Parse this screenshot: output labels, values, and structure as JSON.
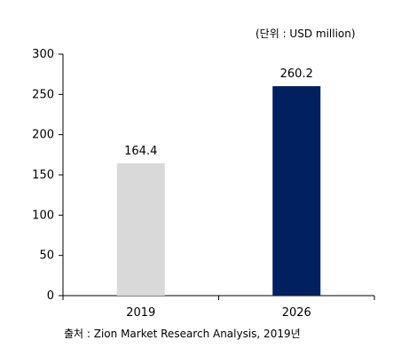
{
  "chart_data": {
    "type": "bar",
    "categories": [
      "2019",
      "2026"
    ],
    "values": [
      164.4,
      260.2
    ],
    "data_labels": [
      "164.4",
      "260.2"
    ],
    "bar_colors": [
      "#d9d9d9",
      "#002060"
    ],
    "ylim": [
      0,
      300
    ],
    "yticks": [
      0,
      50,
      100,
      150,
      200,
      250,
      300
    ],
    "unit_label": "(단위 : USD million)",
    "source": "출처 : Zion Market Research Analysis, 2019년",
    "grid": false
  }
}
